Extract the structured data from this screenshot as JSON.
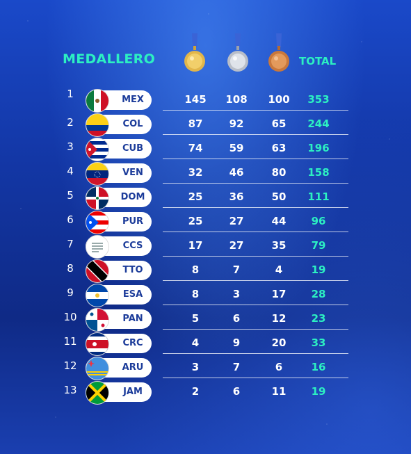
{
  "title": "MEDALLERO",
  "total_label": "TOTAL",
  "medals": [
    "gold-medal",
    "silver-medal",
    "bronze-medal"
  ],
  "colors": {
    "accent": "#2cf0c2",
    "text": "#ffffff",
    "code": "#1c3c9a"
  },
  "rows": [
    {
      "rank": "1",
      "code": "MEX",
      "gold": "145",
      "silver": "108",
      "bronze": "100",
      "total": "353"
    },
    {
      "rank": "2",
      "code": "COL",
      "gold": "87",
      "silver": "92",
      "bronze": "65",
      "total": "244"
    },
    {
      "rank": "3",
      "code": "CUB",
      "gold": "74",
      "silver": "59",
      "bronze": "63",
      "total": "196"
    },
    {
      "rank": "4",
      "code": "VEN",
      "gold": "32",
      "silver": "46",
      "bronze": "80",
      "total": "158"
    },
    {
      "rank": "5",
      "code": "DOM",
      "gold": "25",
      "silver": "36",
      "bronze": "50",
      "total": "111"
    },
    {
      "rank": "6",
      "code": "PUR",
      "gold": "25",
      "silver": "27",
      "bronze": "44",
      "total": "96"
    },
    {
      "rank": "7",
      "code": "CCS",
      "gold": "17",
      "silver": "27",
      "bronze": "35",
      "total": "79"
    },
    {
      "rank": "8",
      "code": "TTO",
      "gold": "8",
      "silver": "7",
      "bronze": "4",
      "total": "19"
    },
    {
      "rank": "9",
      "code": "ESA",
      "gold": "8",
      "silver": "3",
      "bronze": "17",
      "total": "28"
    },
    {
      "rank": "10",
      "code": "PAN",
      "gold": "5",
      "silver": "6",
      "bronze": "12",
      "total": "23"
    },
    {
      "rank": "11",
      "code": "CRC",
      "gold": "4",
      "silver": "9",
      "bronze": "20",
      "total": "33"
    },
    {
      "rank": "12",
      "code": "ARU",
      "gold": "3",
      "silver": "7",
      "bronze": "6",
      "total": "16"
    },
    {
      "rank": "13",
      "code": "JAM",
      "gold": "2",
      "silver": "6",
      "bronze": "11",
      "total": "19"
    }
  ]
}
